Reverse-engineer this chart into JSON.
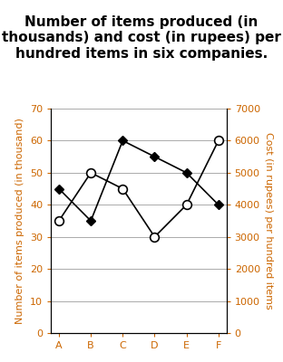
{
  "title": "Number of items produced (in\nthousands) and cost (in rupees) per\nhundred items in six companies.",
  "companies": [
    "A",
    "B",
    "C",
    "D",
    "E",
    "F"
  ],
  "items_produced": [
    45,
    35,
    60,
    55,
    50,
    40
  ],
  "cost_per_hundred": [
    3500,
    5000,
    4500,
    3000,
    4000,
    6000
  ],
  "left_ylim": [
    0,
    70
  ],
  "right_ylim": [
    0,
    7000
  ],
  "left_yticks": [
    0,
    10,
    20,
    30,
    40,
    50,
    60,
    70
  ],
  "right_yticks": [
    0,
    1000,
    2000,
    3000,
    4000,
    5000,
    6000,
    7000
  ],
  "left_ylabel": "Number of items produced (in thousand)",
  "right_ylabel": "Cost (in rupees) per hundred items",
  "label_color": "#cc6600",
  "line_color": "#000000",
  "grid_color": "#aaaaaa",
  "background_color": "#ffffff",
  "title_fontsize": 11,
  "axis_label_fontsize": 8,
  "tick_fontsize": 8,
  "title_color": "#000000"
}
